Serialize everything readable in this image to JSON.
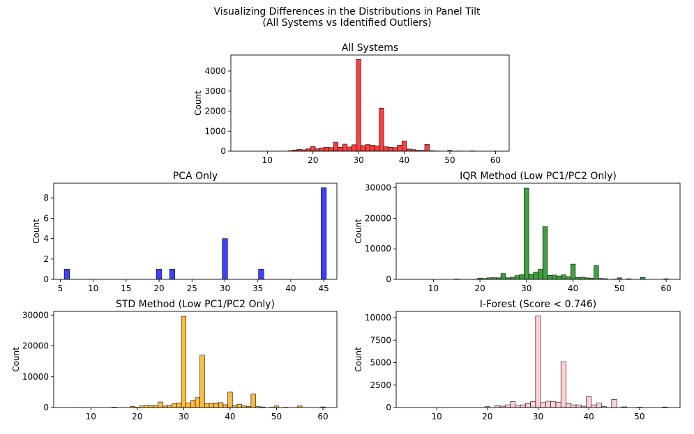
{
  "figure": {
    "title_line1": "Visualizing Differences in the Distributions in Panel Tilt",
    "title_line2": "(All Systems vs Identified Outliers)"
  },
  "chart_data": [
    {
      "type": "bar",
      "title": "All Systems",
      "xlabel": "",
      "ylabel": "Count",
      "color": "#ff0000",
      "xlim": [
        2,
        63
      ],
      "ylim": [
        0,
        4800
      ],
      "xticks": [
        10,
        20,
        30,
        40,
        50,
        60
      ],
      "yticks": [
        0,
        1000,
        2000,
        3000,
        4000
      ],
      "bin_width": 1,
      "bins": [
        [
          15,
          20
        ],
        [
          16,
          60
        ],
        [
          17,
          90
        ],
        [
          18,
          70
        ],
        [
          19,
          120
        ],
        [
          20,
          230
        ],
        [
          21,
          120
        ],
        [
          22,
          170
        ],
        [
          23,
          200
        ],
        [
          24,
          180
        ],
        [
          25,
          450
        ],
        [
          26,
          200
        ],
        [
          27,
          350
        ],
        [
          28,
          210
        ],
        [
          29,
          320
        ],
        [
          30,
          4580
        ],
        [
          31,
          280
        ],
        [
          32,
          330
        ],
        [
          33,
          300
        ],
        [
          34,
          270
        ],
        [
          35,
          2150
        ],
        [
          36,
          220
        ],
        [
          37,
          200
        ],
        [
          38,
          180
        ],
        [
          39,
          300
        ],
        [
          40,
          510
        ],
        [
          41,
          110
        ],
        [
          42,
          80
        ],
        [
          43,
          50
        ],
        [
          44,
          40
        ],
        [
          45,
          340
        ],
        [
          46,
          20
        ],
        [
          47,
          10
        ],
        [
          50,
          40
        ],
        [
          52,
          10
        ],
        [
          55,
          15
        ],
        [
          60,
          8
        ]
      ]
    },
    {
      "type": "bar",
      "title": "PCA Only",
      "xlabel": "",
      "ylabel": "Count",
      "color": "#0000ff",
      "xlim": [
        4,
        47
      ],
      "ylim": [
        0,
        9.45
      ],
      "xticks": [
        5,
        10,
        15,
        20,
        25,
        30,
        35,
        40,
        45
      ],
      "yticks": [
        0,
        2,
        4,
        6,
        8
      ],
      "bin_width": 0.8,
      "bins": [
        [
          6,
          1
        ],
        [
          20,
          1
        ],
        [
          22,
          1
        ],
        [
          30,
          4
        ],
        [
          35.5,
          1
        ],
        [
          45,
          9
        ]
      ]
    },
    {
      "type": "bar",
      "title": "IQR Method (Low PC1/PC2 Only)",
      "xlabel": "",
      "ylabel": "Count",
      "color": "#008000",
      "xlim": [
        2,
        63
      ],
      "ylim": [
        0,
        31500
      ],
      "xticks": [
        10,
        20,
        30,
        40,
        50,
        60
      ],
      "yticks": [
        0,
        10000,
        20000,
        30000
      ],
      "bin_width": 1,
      "bins": [
        [
          8,
          40
        ],
        [
          15,
          150
        ],
        [
          19,
          80
        ],
        [
          20,
          400
        ],
        [
          21,
          250
        ],
        [
          22,
          500
        ],
        [
          23,
          550
        ],
        [
          24,
          500
        ],
        [
          25,
          1900
        ],
        [
          26,
          500
        ],
        [
          27,
          700
        ],
        [
          28,
          1200
        ],
        [
          29,
          1600
        ],
        [
          30,
          29900
        ],
        [
          31,
          1700
        ],
        [
          32,
          2400
        ],
        [
          33,
          3300
        ],
        [
          34,
          17300
        ],
        [
          35,
          1300
        ],
        [
          36,
          1400
        ],
        [
          37,
          1100
        ],
        [
          38,
          1500
        ],
        [
          39,
          900
        ],
        [
          40,
          5000
        ],
        [
          41,
          600
        ],
        [
          42,
          700
        ],
        [
          43,
          500
        ],
        [
          44,
          400
        ],
        [
          45,
          4500
        ],
        [
          46,
          300
        ],
        [
          47,
          200
        ],
        [
          49,
          100
        ],
        [
          50,
          500
        ],
        [
          52,
          200
        ],
        [
          55,
          600
        ],
        [
          60,
          200
        ]
      ]
    },
    {
      "type": "bar",
      "title": "STD Method (Low PC1/PC2 Only)",
      "xlabel": "",
      "ylabel": "Count",
      "color": "#ffa500",
      "xlim": [
        2,
        63
      ],
      "ylim": [
        0,
        31200
      ],
      "xticks": [
        10,
        20,
        30,
        40,
        50,
        60
      ],
      "yticks": [
        0,
        10000,
        20000,
        30000
      ],
      "bin_width": 1,
      "bins": [
        [
          8,
          40
        ],
        [
          15,
          150
        ],
        [
          19,
          400
        ],
        [
          20,
          100
        ],
        [
          21,
          500
        ],
        [
          22,
          700
        ],
        [
          23,
          600
        ],
        [
          24,
          600
        ],
        [
          25,
          1800
        ],
        [
          26,
          500
        ],
        [
          27,
          800
        ],
        [
          28,
          1200
        ],
        [
          29,
          1500
        ],
        [
          30,
          29600
        ],
        [
          31,
          1500
        ],
        [
          32,
          2300
        ],
        [
          33,
          3200
        ],
        [
          34,
          17000
        ],
        [
          35,
          1200
        ],
        [
          36,
          1400
        ],
        [
          37,
          1300
        ],
        [
          38,
          1600
        ],
        [
          39,
          900
        ],
        [
          40,
          5000
        ],
        [
          41,
          600
        ],
        [
          42,
          1100
        ],
        [
          43,
          500
        ],
        [
          44,
          400
        ],
        [
          45,
          4400
        ],
        [
          46,
          300
        ],
        [
          47,
          200
        ],
        [
          49,
          100
        ],
        [
          50,
          500
        ],
        [
          52,
          100
        ],
        [
          55,
          500
        ],
        [
          60,
          200
        ]
      ]
    },
    {
      "type": "bar",
      "title": "I-Forest (Score < 0.746)",
      "xlabel": "",
      "ylabel": "Count",
      "color": "#ffc0cb",
      "xlim": [
        2,
        58
      ],
      "ylim": [
        0,
        10700
      ],
      "xticks": [
        10,
        20,
        30,
        40,
        50
      ],
      "yticks": [
        0,
        2500,
        5000,
        7500,
        10000
      ],
      "bin_width": 1,
      "bins": [
        [
          20,
          100
        ],
        [
          22,
          200
        ],
        [
          23,
          150
        ],
        [
          24,
          300
        ],
        [
          25,
          650
        ],
        [
          26,
          250
        ],
        [
          27,
          300
        ],
        [
          28,
          450
        ],
        [
          29,
          650
        ],
        [
          30,
          10200
        ],
        [
          31,
          550
        ],
        [
          32,
          700
        ],
        [
          33,
          650
        ],
        [
          34,
          600
        ],
        [
          35,
          5100
        ],
        [
          36,
          450
        ],
        [
          37,
          300
        ],
        [
          38,
          300
        ],
        [
          39,
          150
        ],
        [
          40,
          1200
        ],
        [
          41,
          300
        ],
        [
          42,
          500
        ],
        [
          43,
          100
        ],
        [
          45,
          900
        ],
        [
          47,
          80
        ],
        [
          50,
          40
        ],
        [
          55,
          60
        ]
      ]
    }
  ]
}
